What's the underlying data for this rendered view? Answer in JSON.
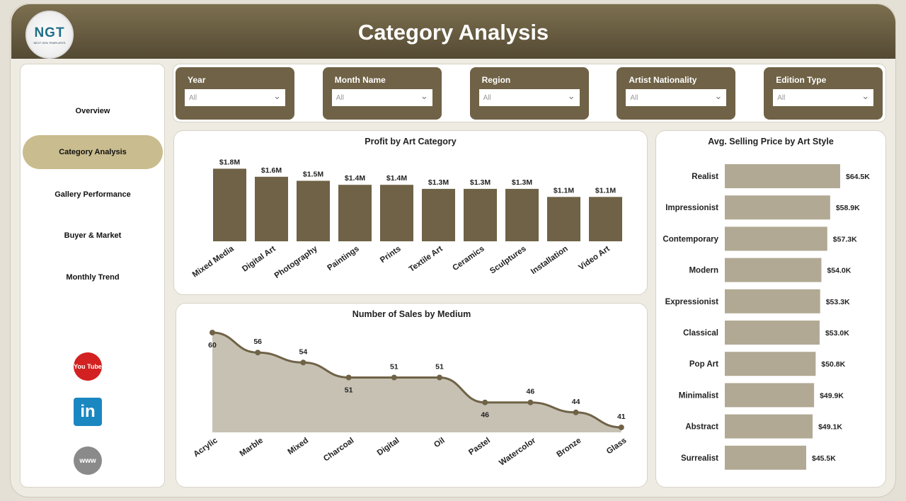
{
  "header": {
    "title": "Category Analysis",
    "logo_text": "NGT",
    "logo_sub": "NEXT GEN TEMPLATES"
  },
  "sidebar": {
    "items": [
      {
        "label": "Overview"
      },
      {
        "label": "Category Analysis",
        "active": true
      },
      {
        "label": "Gallery Performance"
      },
      {
        "label": "Buyer & Market"
      },
      {
        "label": "Monthly Trend"
      }
    ],
    "social": [
      {
        "name": "youtube-icon",
        "text": "You Tube"
      },
      {
        "name": "linkedin-icon",
        "text": "in"
      },
      {
        "name": "globe-icon",
        "text": "www"
      }
    ]
  },
  "filters": [
    {
      "label": "Year",
      "value": "All"
    },
    {
      "label": "Month Name",
      "value": "All"
    },
    {
      "label": "Region",
      "value": "All"
    },
    {
      "label": "Artist Nationality",
      "value": "All"
    },
    {
      "label": "Edition Type",
      "value": "All"
    }
  ],
  "colors": {
    "accent": "#6f6246",
    "bar_light": "#b1a993",
    "area": "#c6c1b3",
    "active_nav": "#c9bc8e"
  },
  "chart_data": [
    {
      "type": "bar",
      "title": "Profit by Art Category",
      "categories": [
        "Mixed Media",
        "Digital Art",
        "Photography",
        "Paintings",
        "Prints",
        "Textile Art",
        "Ceramics",
        "Sculptures",
        "Installation",
        "Video Art"
      ],
      "values": [
        1.8,
        1.6,
        1.5,
        1.4,
        1.4,
        1.3,
        1.3,
        1.3,
        1.1,
        1.1
      ],
      "labels": [
        "$1.8M",
        "$1.6M",
        "$1.5M",
        "$1.4M",
        "$1.4M",
        "$1.3M",
        "$1.3M",
        "$1.3M",
        "$1.1M",
        "$1.1M"
      ],
      "unit": "M",
      "ylim": [
        0,
        2.2
      ]
    },
    {
      "type": "area",
      "title": "Number of Sales by Medium",
      "categories": [
        "Acrylic",
        "Marble",
        "Mixed",
        "Charcoal",
        "Digital",
        "Oil",
        "Pastel",
        "Watercolor",
        "Bronze",
        "Glass"
      ],
      "values": [
        60,
        56,
        54,
        51,
        51,
        51,
        46,
        46,
        44,
        41
      ],
      "ylim": [
        40,
        60
      ]
    },
    {
      "type": "bar",
      "orientation": "horizontal",
      "title": "Avg. Selling Price by Art Style",
      "categories": [
        "Realist",
        "Impressionist",
        "Contemporary",
        "Modern",
        "Expressionist",
        "Classical",
        "Pop Art",
        "Minimalist",
        "Abstract",
        "Surrealist"
      ],
      "values": [
        64.5,
        58.9,
        57.3,
        54.0,
        53.3,
        53.0,
        50.8,
        49.9,
        49.1,
        45.5
      ],
      "labels": [
        "$64.5K",
        "$58.9K",
        "$57.3K",
        "$54.0K",
        "$53.3K",
        "$53.0K",
        "$50.8K",
        "$49.9K",
        "$49.1K",
        "$45.5K"
      ],
      "xlim": [
        0,
        70
      ]
    }
  ]
}
